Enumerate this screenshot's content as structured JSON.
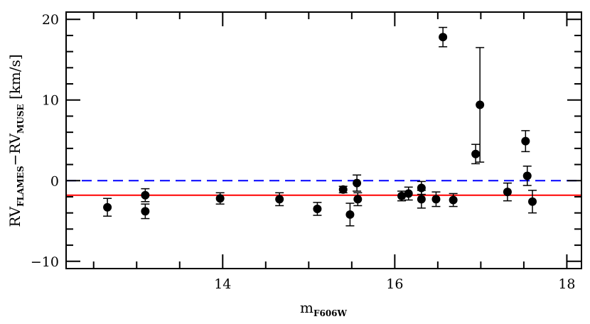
{
  "chart_data": {
    "type": "scatter",
    "title": "",
    "xlabel_main": "m",
    "xlabel_sub": "F606W",
    "ylabel_parts": [
      "RV",
      "FLAMES",
      "−RV",
      "MUSE",
      " [km/s]"
    ],
    "xlim": [
      12.18,
      18.17
    ],
    "ylim": [
      -10.9,
      20.9
    ],
    "xticks": [
      14,
      16,
      18
    ],
    "xtick_labels": [
      "14",
      "16",
      "18"
    ],
    "yticks": [
      -10,
      0,
      10,
      20
    ],
    "ytick_labels": [
      "−10",
      "0",
      "10",
      "20"
    ],
    "grid": false,
    "reference_lines": [
      {
        "y": 0,
        "color": "#0000ff",
        "style": "dashed"
      },
      {
        "y": -1.8,
        "color": "#ff0000",
        "style": "solid"
      }
    ],
    "marker_color": "#000000",
    "points": [
      {
        "x": 12.66,
        "y": -3.3,
        "err": 1.1
      },
      {
        "x": 13.1,
        "y": -1.8,
        "err": 0.8
      },
      {
        "x": 13.1,
        "y": -3.8,
        "err": 0.9
      },
      {
        "x": 13.97,
        "y": -2.2,
        "err": 0.7
      },
      {
        "x": 14.66,
        "y": -2.3,
        "err": 0.8
      },
      {
        "x": 15.1,
        "y": -3.5,
        "err": 0.8
      },
      {
        "x": 15.4,
        "y": -1.1,
        "err": 0.4
      },
      {
        "x": 15.48,
        "y": -4.2,
        "err": 1.4
      },
      {
        "x": 15.56,
        "y": -0.3,
        "err": 1.0
      },
      {
        "x": 15.57,
        "y": -2.3,
        "err": 0.8
      },
      {
        "x": 16.08,
        "y": -1.9,
        "err": 0.6
      },
      {
        "x": 16.16,
        "y": -1.6,
        "err": 0.8
      },
      {
        "x": 16.31,
        "y": -0.9,
        "err": 0.8
      },
      {
        "x": 16.31,
        "y": -2.3,
        "err": 1.1
      },
      {
        "x": 16.48,
        "y": -2.3,
        "err": 0.9
      },
      {
        "x": 16.56,
        "y": 17.8,
        "err": 1.2
      },
      {
        "x": 16.68,
        "y": -2.4,
        "err": 0.8
      },
      {
        "x": 16.94,
        "y": 3.3,
        "err": 1.2
      },
      {
        "x": 16.99,
        "y": 9.4,
        "err": 7.1
      },
      {
        "x": 17.31,
        "y": -1.4,
        "err": 1.1
      },
      {
        "x": 17.52,
        "y": 4.9,
        "err": 1.3
      },
      {
        "x": 17.54,
        "y": 0.6,
        "err": 1.2
      },
      {
        "x": 17.6,
        "y": -2.6,
        "err": 1.4
      }
    ]
  }
}
